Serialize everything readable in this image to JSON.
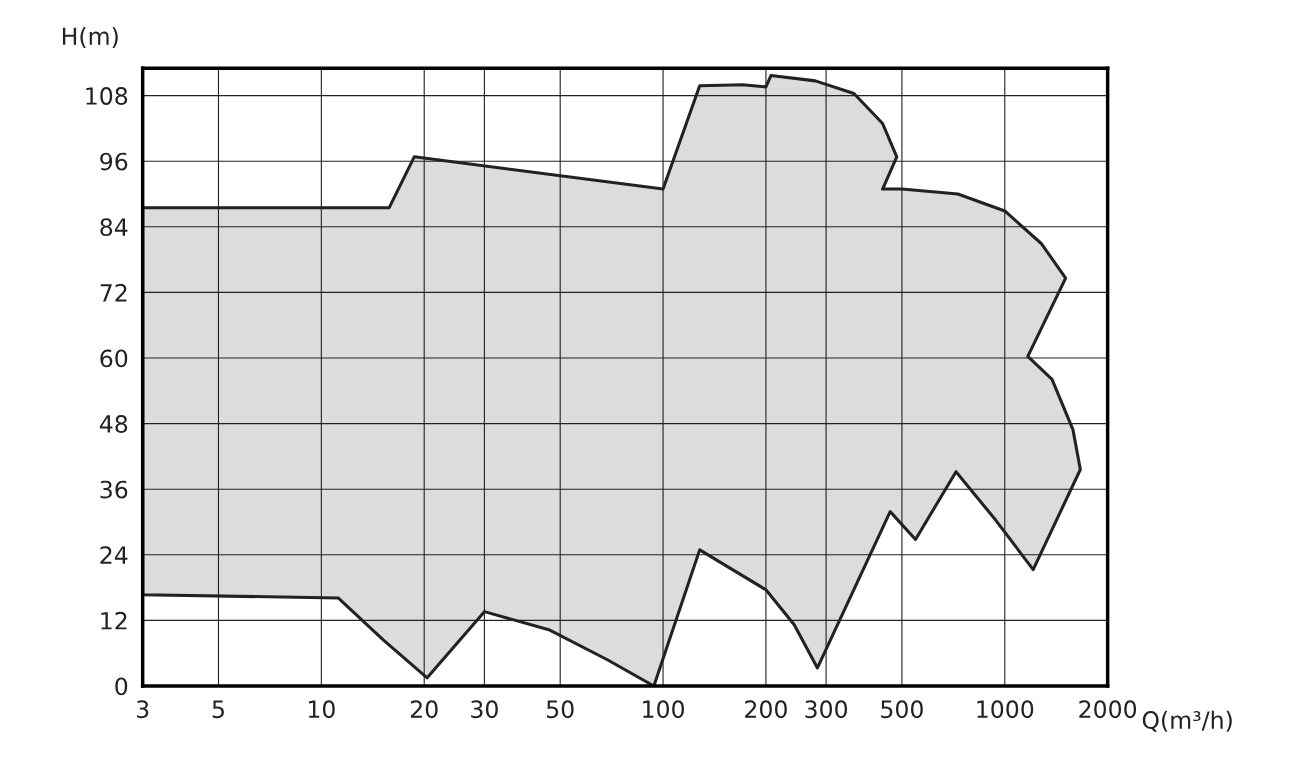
{
  "chart_data": {
    "type": "area",
    "xlabel": "Q(m³/h)",
    "ylabel": "H(m)",
    "log": "x",
    "grid": true,
    "legend": false,
    "xlim": [
      3,
      2000
    ],
    "ylim": [
      0,
      113
    ],
    "xticks": [
      3,
      5,
      10,
      20,
      30,
      50,
      100,
      200,
      300,
      500,
      1000,
      2000
    ],
    "yticks": [
      0,
      12,
      24,
      36,
      48,
      60,
      72,
      84,
      96,
      108
    ],
    "series": [
      {
        "color": "#dcdcde",
        "x": [
          3,
          15.8,
          18.7,
          100,
          128,
          171,
          200,
          207,
          279,
          362,
          439,
          483,
          439,
          500,
          729,
          1000,
          1281,
          1507,
          1168,
          1375,
          1583,
          1664,
          1211,
          939,
          720,
          548,
          462,
          283,
          242,
          200,
          128,
          94,
          68.7,
          46.3,
          30,
          20.4,
          15.2,
          11.2,
          3
        ],
        "values": [
          87.5,
          87.5,
          96.8,
          90.9,
          109.8,
          110,
          109.6,
          111.7,
          110.7,
          108.4,
          102.9,
          96.8,
          90.9,
          90.9,
          90.0,
          86.9,
          80.9,
          74.6,
          60.3,
          56.1,
          46.9,
          39.6,
          21.3,
          30.4,
          39.2,
          26.8,
          31.9,
          3.3,
          11.2,
          17.6,
          24.9,
          0,
          4.8,
          10.3,
          13.6,
          1.5,
          8.4,
          16.1,
          16.7
        ]
      }
    ]
  }
}
